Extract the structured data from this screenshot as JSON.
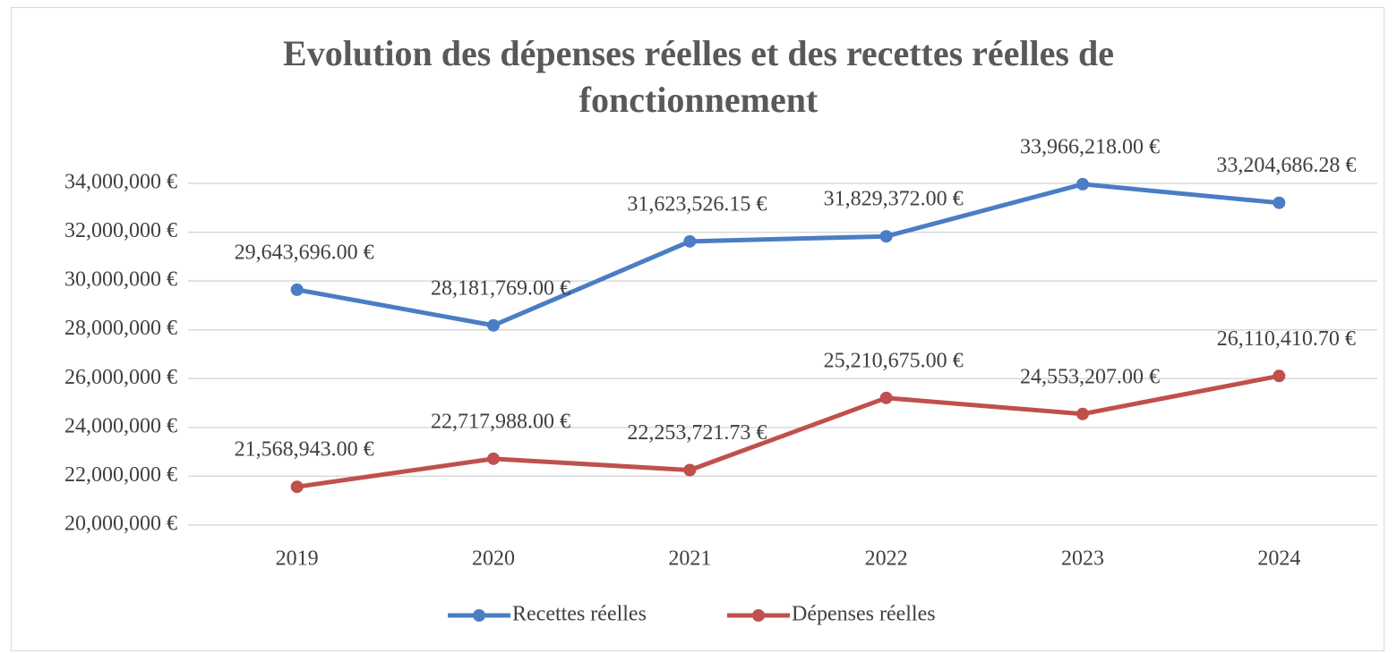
{
  "chart_data": {
    "type": "line",
    "title": "Evolution des dépenses réelles et des recettes réelles de fonctionnement",
    "categories": [
      "2019",
      "2020",
      "2021",
      "2022",
      "2023",
      "2024"
    ],
    "series": [
      {
        "name": "Recettes réelles",
        "color": "#4a7dc4",
        "values": [
          29643696.0,
          28181769.0,
          31623526.15,
          31829372.0,
          33966218.0,
          33204686.28
        ],
        "value_labels": [
          "29,643,696.00 €",
          "28,181,769.00 €",
          "31,623,526.15 €",
          "31,829,372.00 €",
          "33,966,218.00 €",
          "33,204,686.28 €"
        ]
      },
      {
        "name": "Dépenses réelles",
        "color": "#c0504d",
        "values": [
          21568943.0,
          22717988.0,
          22253721.73,
          25210675.0,
          24553207.0,
          26110410.7
        ],
        "value_labels": [
          "21,568,943.00 €",
          "22,717,988.00 €",
          "22,253,721.73 €",
          "25,210,675.00 €",
          "24,553,207.00 €",
          "26,110,410.70 €"
        ]
      }
    ],
    "ylim": [
      20000000,
      34000000
    ],
    "yticks": [
      {
        "value": 20000000,
        "label": "20,000,000 €"
      },
      {
        "value": 22000000,
        "label": "22,000,000 €"
      },
      {
        "value": 24000000,
        "label": "24,000,000 €"
      },
      {
        "value": 26000000,
        "label": "26,000,000 €"
      },
      {
        "value": 28000000,
        "label": "28,000,000 €"
      },
      {
        "value": 30000000,
        "label": "30,000,000 €"
      },
      {
        "value": 32000000,
        "label": "32,000,000 €"
      },
      {
        "value": 34000000,
        "label": "34,000,000 €"
      }
    ],
    "grid": true,
    "legend": "bottom"
  }
}
